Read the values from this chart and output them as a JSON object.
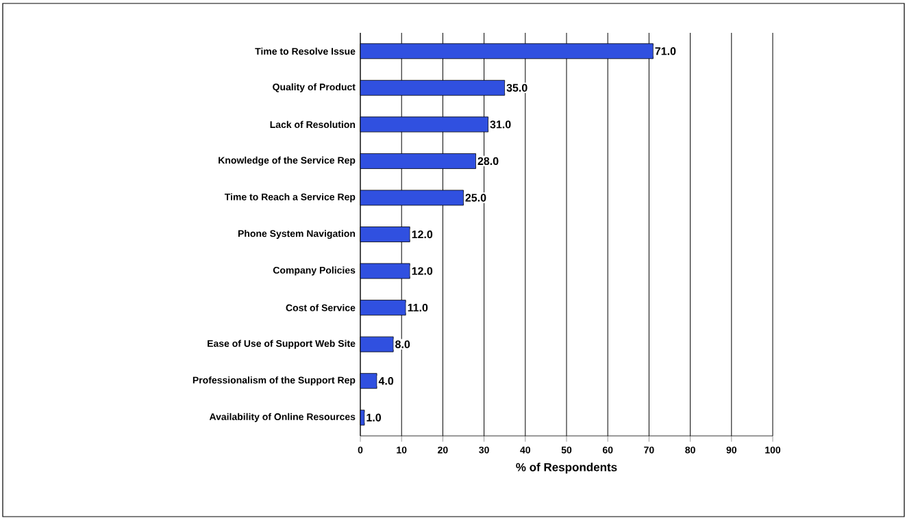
{
  "chart_data": {
    "type": "bar",
    "orientation": "horizontal",
    "categories": [
      "Time to Resolve Issue",
      "Quality of Product",
      "Lack of Resolution",
      "Knowledge of the Service Rep",
      "Time to Reach a Service Rep",
      "Phone System Navigation",
      "Company Policies",
      "Cost of Service",
      "Ease of Use of Support Web Site",
      "Professionalism of the Support Rep",
      "Availability of Online Resources"
    ],
    "values": [
      71,
      35,
      31,
      28,
      25,
      12,
      12,
      11,
      8,
      4,
      1
    ],
    "value_labels": [
      "71.0",
      "35.0",
      "31.0",
      "28.0",
      "25.0",
      "12.0",
      "12.0",
      "11.0",
      "8.0",
      "4.0",
      "1.0"
    ],
    "color": "#3050e0",
    "xlabel": "% of Respondents",
    "xlim": [
      0,
      100
    ],
    "xticks": [
      0,
      10,
      20,
      30,
      40,
      50,
      60,
      70,
      80,
      90,
      100
    ],
    "grid": "x"
  }
}
